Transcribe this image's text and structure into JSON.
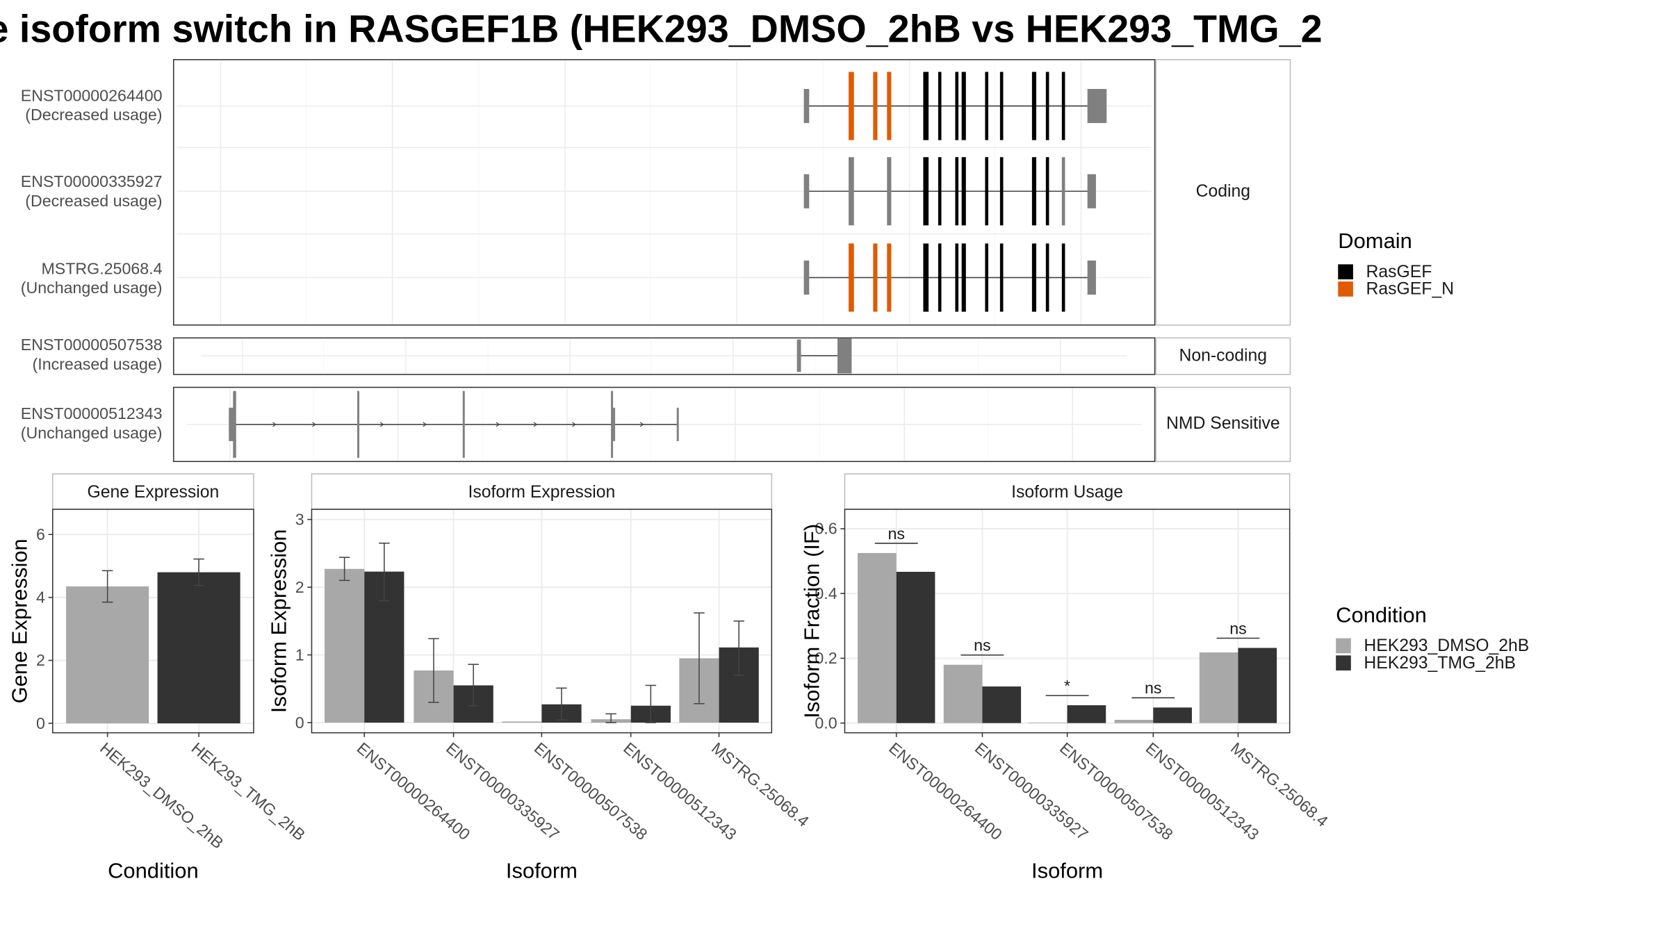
{
  "title": "e isoform switch in RASGEF1B (HEK293_DMSO_2hB vs HEK293_TMG_2",
  "colors": {
    "RasGEF": "#000000",
    "RasGEF_N": "#e05b00",
    "exon": "#808080",
    "cond1": "#a8a8a8",
    "cond2": "#333333"
  },
  "chart_data": [
    {
      "type": "gene-structure",
      "panels": [
        {
          "facet": "Coding",
          "transcripts": [
            {
              "id": "ENST00000264400",
              "usage": "(Decreased usage)"
            },
            {
              "id": "ENST00000335927",
              "usage": "(Decreased usage)"
            },
            {
              "id": "MSTRG.25068.4",
              "usage": "(Unchanged usage)"
            }
          ]
        },
        {
          "facet": "Non-coding",
          "transcripts": [
            {
              "id": "ENST00000507538",
              "usage": "(Increased usage)"
            }
          ]
        },
        {
          "facet": "NMD Sensitive",
          "transcripts": [
            {
              "id": "ENST00000512343",
              "usage": "(Unchanged usage)"
            }
          ]
        }
      ],
      "legend": {
        "title": "Domain",
        "entries": [
          "RasGEF",
          "RasGEF_N"
        ]
      }
    },
    {
      "type": "bar",
      "title": "Gene Expression",
      "xlabel": "Condition",
      "ylabel": "Gene Expression",
      "categories": [
        "HEK293_DMSO_2hB",
        "HEK293_TMG_2hB"
      ],
      "values": [
        4.35,
        4.8
      ],
      "error_low": [
        3.85,
        4.38
      ],
      "error_high": [
        4.85,
        5.22
      ],
      "ylim": [
        -0.3,
        6.8
      ],
      "yticks": [
        0,
        2,
        4,
        6
      ]
    },
    {
      "type": "bar",
      "title": "Isoform Expression",
      "xlabel": "Isoform",
      "ylabel": "Isoform Expression",
      "categories": [
        "ENST00000264400",
        "ENST00000335927",
        "ENST00000507538",
        "ENST00000512343",
        "MSTRG.25068.4"
      ],
      "series": [
        {
          "name": "HEK293_DMSO_2hB",
          "values": [
            2.27,
            0.77,
            0.0,
            0.05,
            0.95
          ],
          "error_low": [
            2.1,
            0.3,
            0.0,
            0.0,
            0.28
          ],
          "error_high": [
            2.44,
            1.24,
            0.0,
            0.13,
            1.62
          ]
        },
        {
          "name": "HEK293_TMG_2hB",
          "values": [
            2.23,
            0.55,
            0.27,
            0.25,
            1.11
          ],
          "error_low": [
            1.8,
            0.25,
            0.04,
            0.0,
            0.7
          ],
          "error_high": [
            2.65,
            0.86,
            0.51,
            0.55,
            1.5
          ]
        }
      ],
      "ylim": [
        -0.15,
        3.15
      ],
      "yticks": [
        0,
        1,
        2,
        3
      ]
    },
    {
      "type": "bar",
      "title": "Isoform Usage",
      "xlabel": "Isoform",
      "ylabel": "Isoform Fraction (IF)",
      "categories": [
        "ENST00000264400",
        "ENST00000335927",
        "ENST00000507538",
        "ENST00000512343",
        "MSTRG.25068.4"
      ],
      "series": [
        {
          "name": "HEK293_DMSO_2hB",
          "values": [
            0.525,
            0.18,
            0.0,
            0.01,
            0.218
          ]
        },
        {
          "name": "HEK293_TMG_2hB",
          "values": [
            0.467,
            0.113,
            0.055,
            0.048,
            0.232
          ]
        }
      ],
      "significance": [
        "ns",
        "ns",
        "*",
        "ns",
        "ns"
      ],
      "ylim": [
        -0.03,
        0.66
      ],
      "yticks": [
        "0.0",
        "0.2",
        "0.4",
        "0.6"
      ]
    }
  ],
  "legends": {
    "condition": {
      "title": "Condition",
      "entries": [
        "HEK293_DMSO_2hB",
        "HEK293_TMG_2hB"
      ]
    }
  }
}
